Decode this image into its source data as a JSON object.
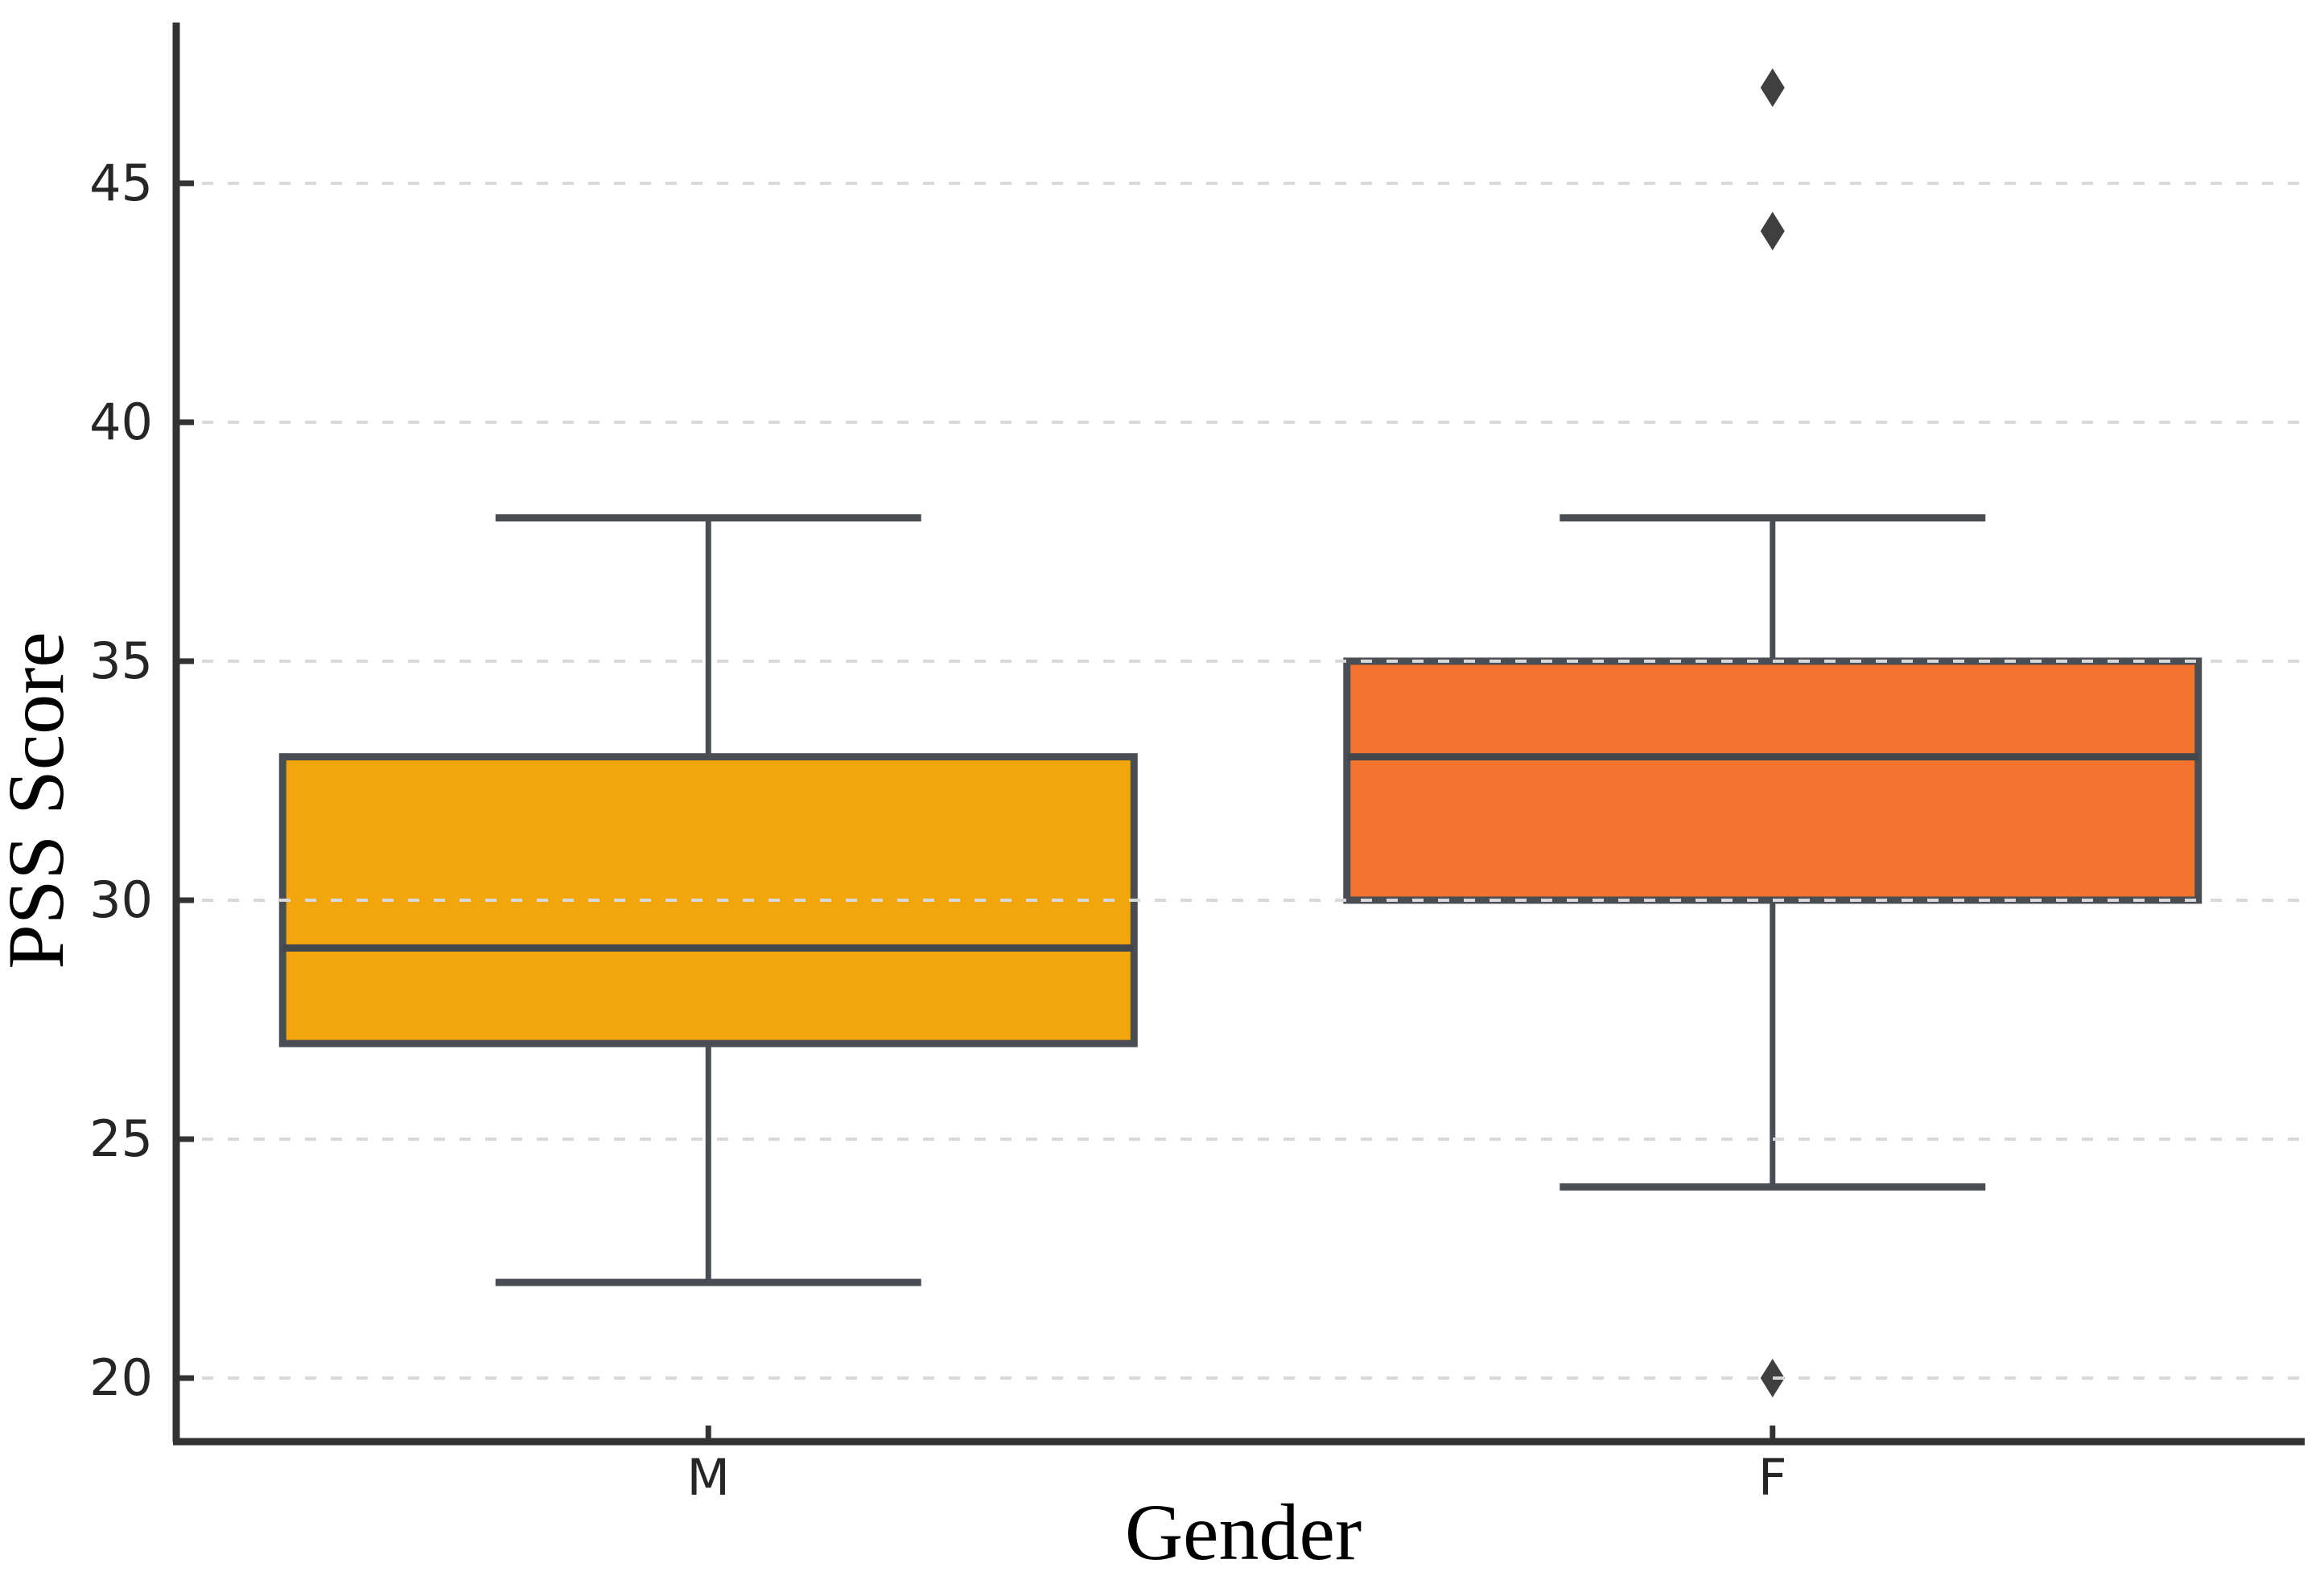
{
  "chart_data": {
    "type": "boxplot",
    "title": "",
    "xlabel": "Gender",
    "ylabel": "PSS Score",
    "categories": [
      "M",
      "F"
    ],
    "yticks": [
      20,
      25,
      30,
      35,
      40,
      45
    ],
    "ylim": [
      18.67,
      48.6
    ],
    "grid": {
      "axis": "y",
      "style": "dashed",
      "on": true
    },
    "legend": "none",
    "series": [
      {
        "category": "M",
        "whisker_low": 22,
        "q1": 27,
        "median": 29,
        "q3": 33,
        "whisker_high": 38,
        "outliers": [],
        "fill": "#F3A60B"
      },
      {
        "category": "F",
        "whisker_low": 24,
        "q1": 30,
        "median": 33,
        "q3": 35,
        "whisker_high": 38,
        "outliers": [
          47,
          44,
          20
        ],
        "fill": "#F4732F"
      }
    ],
    "colors": {
      "box_edge": "#4A4E54",
      "whisker": "#4A4E54",
      "median": "#43474B",
      "outlier": "#3F3F3F",
      "gridline": "#D9D9D9",
      "spine": "#333333",
      "tick_label": "#262626",
      "axis_label": "#000000",
      "background": "#FFFFFF"
    }
  }
}
